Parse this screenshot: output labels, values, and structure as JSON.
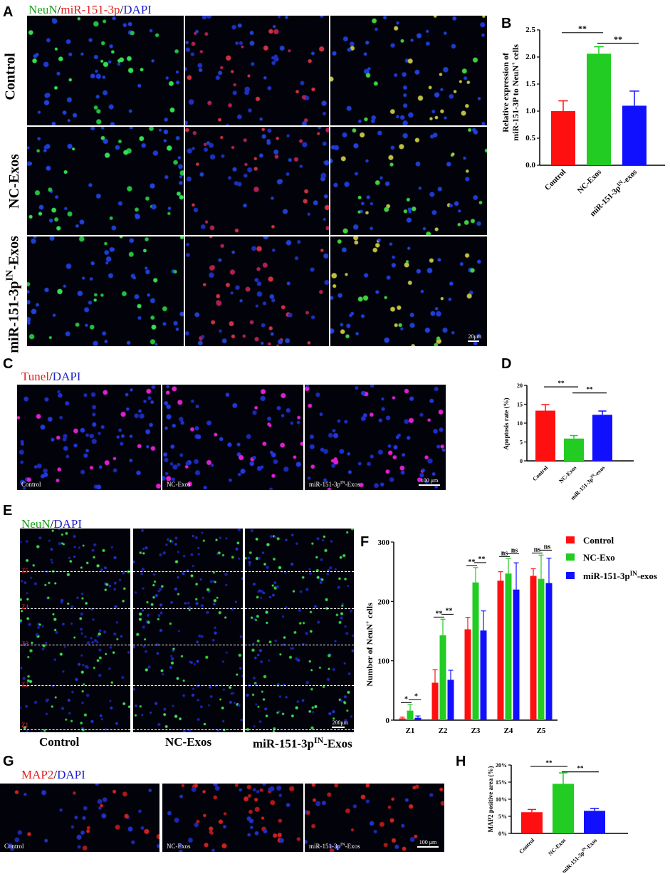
{
  "panels": {
    "A": {
      "letter": "A",
      "title_parts": [
        {
          "text": "NeuN",
          "color": "#1aa01a"
        },
        {
          "text": "/",
          "color": "#000"
        },
        {
          "text": "miR-151-3p",
          "color": "#e02020"
        },
        {
          "text": "/",
          "color": "#000"
        },
        {
          "text": "DAPI",
          "color": "#2020d0"
        }
      ],
      "rows": [
        "Control",
        "NC-Exos",
        "miR-151-3p"
      ],
      "row3_sup": "IN",
      "row3_suffix": "-Exos",
      "scale": "20μm"
    },
    "B": {
      "letter": "B"
    },
    "C": {
      "letter": "C",
      "title_parts": [
        {
          "text": "Tunel",
          "color": "#e02020"
        },
        {
          "text": "/",
          "color": "#000"
        },
        {
          "text": "DAPI",
          "color": "#2020d0"
        }
      ],
      "labels": [
        "Control",
        "NC-Exos",
        "miR-151-3p"
      ],
      "label3_sup": "IN",
      "label3_suffix": "-Exos",
      "scale": "100 μm"
    },
    "D": {
      "letter": "D"
    },
    "E": {
      "letter": "E",
      "title_parts": [
        {
          "text": "NeuN",
          "color": "#1aa01a"
        },
        {
          "text": "/",
          "color": "#000"
        },
        {
          "text": "DAPI",
          "color": "#2020d0"
        }
      ],
      "zones": [
        "Z5",
        "Z4",
        "Z3",
        "Z2",
        "Z1"
      ],
      "captions": [
        "Control",
        "NC-Exos",
        "miR-151-3p"
      ],
      "caption3_sup": "IN",
      "caption3_suffix": "-Exos",
      "scale": "200μm"
    },
    "F": {
      "letter": "F"
    },
    "G": {
      "letter": "G",
      "title_parts": [
        {
          "text": "MAP2",
          "color": "#e02020"
        },
        {
          "text": "/",
          "color": "#000"
        },
        {
          "text": "DAPI",
          "color": "#2020d0"
        }
      ],
      "labels": [
        "Control",
        "NC-Exos",
        "miR-151-3p"
      ],
      "label3_sup": "IN",
      "label3_suffix": "-Exos",
      "scale": "100 μm"
    },
    "H": {
      "letter": "H"
    }
  },
  "colors": {
    "control": "#ff1010",
    "nc": "#22cc22",
    "inhib": "#1010ff"
  },
  "chart_data": [
    {
      "id": "B",
      "type": "bar",
      "ylabel_line1": "Relative expression of",
      "ylabel_line2": "miR-151-3P to NeuN",
      "ylabel_sup": "+",
      "ylabel_tail": " cells",
      "categories": [
        "Control",
        "NC-Exos",
        "miR-151-3p"
      ],
      "cat3_sup": "IN",
      "cat3_suffix": "-exos",
      "values": [
        1.0,
        2.06,
        1.1
      ],
      "errors": [
        0.19,
        0.13,
        0.27
      ],
      "ylim": [
        0,
        2.5
      ],
      "yticks": [
        "0.0",
        "0.5",
        "1.0",
        "1.5",
        "2.0",
        "2.5"
      ],
      "sig": [
        "**",
        "**"
      ]
    },
    {
      "id": "D",
      "type": "bar",
      "ylabel": "Apoptosis rate (%)",
      "categories": [
        "Control",
        "NC-Exos",
        "miR-151-3p"
      ],
      "cat3_sup": "IN",
      "cat3_suffix": "-exos",
      "values": [
        13.3,
        5.9,
        12.2
      ],
      "errors": [
        1.6,
        0.8,
        1.0
      ],
      "ylim": [
        0,
        20
      ],
      "yticks": [
        "0",
        "5",
        "10",
        "15",
        "20"
      ],
      "sig": [
        "**",
        "**"
      ]
    },
    {
      "id": "F",
      "type": "bar",
      "ylabel": "Number of NeuN",
      "ylabel_sup": "+",
      "ylabel_tail": " cells",
      "categories": [
        "Z1",
        "Z2",
        "Z3",
        "Z4",
        "Z5"
      ],
      "ylim": [
        0,
        300
      ],
      "yticks": [
        "0",
        "100",
        "200",
        "300"
      ],
      "series": [
        {
          "name": "Control",
          "values": [
            3,
            63,
            153,
            235,
            243
          ],
          "errors": [
            2,
            22,
            20,
            15,
            12
          ]
        },
        {
          "name": "NC-Exo",
          "values": [
            16,
            143,
            232,
            247,
            238
          ],
          "errors": [
            10,
            27,
            25,
            25,
            40
          ]
        },
        {
          "name": "miR-151-3p",
          "name_sup": "IN",
          "name_suffix": "-exos",
          "values": [
            4,
            68,
            151,
            220,
            231
          ],
          "errors": [
            3,
            16,
            33,
            45,
            42
          ]
        }
      ],
      "sig": [
        [
          "*",
          "*"
        ],
        [
          "**",
          "**"
        ],
        [
          "**",
          "**"
        ],
        [
          "ns",
          "ns"
        ],
        [
          "ns",
          "ns"
        ]
      ]
    },
    {
      "id": "H",
      "type": "bar",
      "ylabel": "MAP2 positive area (%)",
      "categories": [
        "Control",
        "NC-Exos",
        "miR-151-3p"
      ],
      "cat3_sup": "IN",
      "cat3_suffix": "-Exos",
      "values": [
        6.2,
        14.5,
        6.6
      ],
      "errors": [
        0.8,
        3.2,
        0.7
      ],
      "ylim": [
        0,
        20
      ],
      "yticks": [
        "0%",
        "5%",
        "10%",
        "15%",
        "20%"
      ],
      "sig": [
        "**",
        "**"
      ]
    }
  ]
}
